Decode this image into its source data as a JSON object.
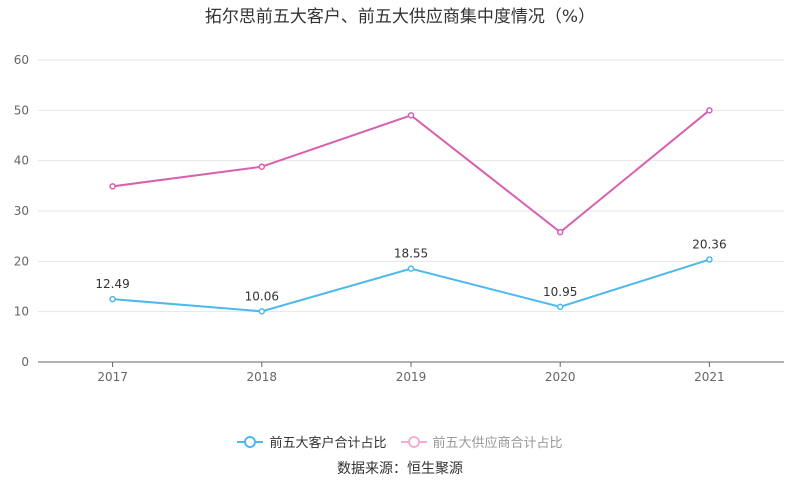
{
  "chart_data": {
    "type": "line",
    "title": "拓尔思前五大客户、前五大供应商集中度情况（%）",
    "categories": [
      "2017",
      "2018",
      "2019",
      "2020",
      "2021"
    ],
    "ylim": [
      0,
      60
    ],
    "yticks": [
      0,
      10,
      20,
      30,
      40,
      50,
      60
    ],
    "grid": true,
    "legend_position": "bottom",
    "series": [
      {
        "name": "前五大客户合计占比",
        "color": "#4fb8ec",
        "values": [
          12.49,
          10.06,
          18.55,
          10.95,
          20.36
        ],
        "labels": [
          "12.49",
          "10.06",
          "18.55",
          "10.95",
          "20.36"
        ]
      },
      {
        "name": "前五大供应商合计占比",
        "color": "#d95fb0",
        "values": [
          34.9,
          38.8,
          49.0,
          25.8,
          50.0
        ]
      }
    ]
  },
  "source": "数据来源：恒生聚源"
}
